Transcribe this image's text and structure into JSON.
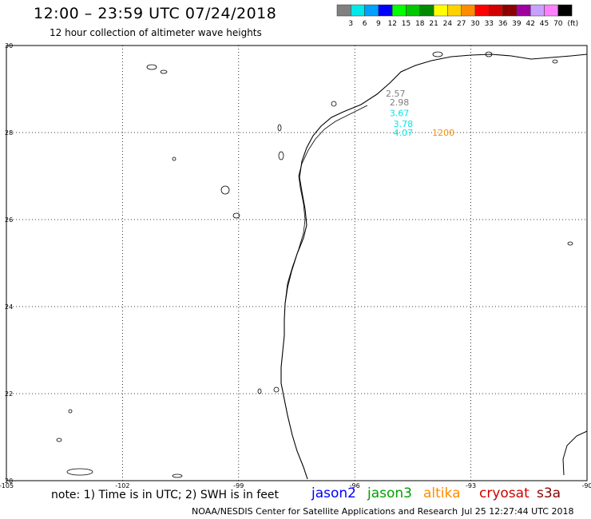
{
  "header": {
    "title": "12:00 – 23:59 UTC 07/24/2018",
    "subtitle": "12 hour collection of altimeter wave heights"
  },
  "legend": {
    "unit": "(ft)",
    "bins": [
      {
        "label": "3",
        "color": "#808080"
      },
      {
        "label": "6",
        "color": "#00e8e8"
      },
      {
        "label": "9",
        "color": "#00a0ff"
      },
      {
        "label": "12",
        "color": "#0000ff"
      },
      {
        "label": "15",
        "color": "#00ff00"
      },
      {
        "label": "18",
        "color": "#00c800"
      },
      {
        "label": "21",
        "color": "#008c00"
      },
      {
        "label": "24",
        "color": "#ffff00"
      },
      {
        "label": "27",
        "color": "#ffd200"
      },
      {
        "label": "30",
        "color": "#ff8c00"
      },
      {
        "label": "33",
        "color": "#ff0000"
      },
      {
        "label": "36",
        "color": "#d20000"
      },
      {
        "label": "39",
        "color": "#8c0000"
      },
      {
        "label": "42",
        "color": "#a000a0"
      },
      {
        "label": "45",
        "color": "#c8a0ff"
      },
      {
        "label": "70",
        "color": "#ff80ff"
      },
      {
        "label": "",
        "color": "#000000"
      }
    ]
  },
  "map": {
    "lon_range": [
      -105,
      -90
    ],
    "lat_range": [
      20,
      30
    ],
    "lon_ticks": [
      "-105",
      "-102",
      "-99",
      "-96",
      "-93",
      "-90"
    ],
    "lon_values": [
      -105,
      -102,
      -99,
      -96,
      -93,
      -90
    ],
    "lat_ticks": [
      "30",
      "28",
      "26",
      "24",
      "22",
      "20"
    ],
    "lat_values": [
      30,
      28,
      26,
      24,
      22,
      20
    ],
    "grid": true
  },
  "observations": [
    {
      "lon": -95.2,
      "lat": 28.9,
      "value": "2.57",
      "color": "#808080"
    },
    {
      "lon": -95.1,
      "lat": 28.7,
      "value": "2.98",
      "color": "#808080"
    },
    {
      "lon": -95.1,
      "lat": 28.45,
      "value": "3.67",
      "color": "#00e8e8"
    },
    {
      "lon": -95.0,
      "lat": 28.2,
      "value": "3.78",
      "color": "#00e8e8"
    },
    {
      "lon": -95.0,
      "lat": 28.0,
      "value": "4.07",
      "color": "#00e8e8"
    },
    {
      "time_label": "1200",
      "lon": -94.0,
      "lat": 28.0,
      "color": "#ff8c00"
    }
  ],
  "footer": {
    "note": "note: 1) Time is in UTC; 2) SWH is in feet",
    "satellites": [
      {
        "name": "jason2",
        "color": "#0000ff"
      },
      {
        "name": "jason3",
        "color": "#00a000"
      },
      {
        "name": "altika",
        "color": "#ff8c00"
      },
      {
        "name": "cryosat",
        "color": "#d00000"
      },
      {
        "name": "s3a",
        "color": "#8c0000"
      }
    ],
    "credit": "NOAA/NESDIS Center for Satellite Applications and Research",
    "timestamp": "Jul 25 12:27:44 UTC 2018"
  }
}
